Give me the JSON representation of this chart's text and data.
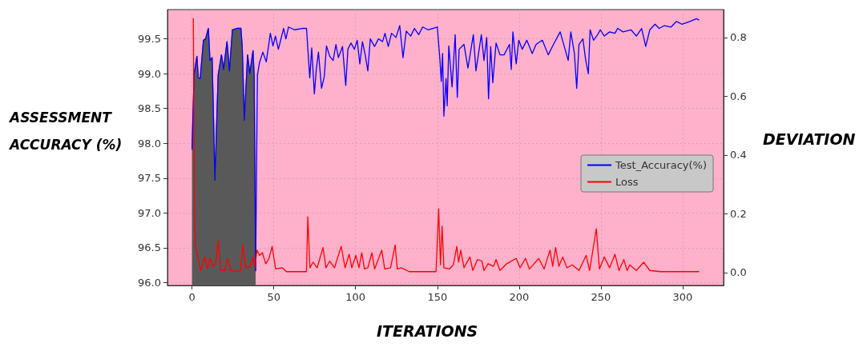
{
  "chart_data": {
    "type": "line",
    "xlabel": "ITERATIONS",
    "ylabel": "ASSESSMENT ACCURACY (%)",
    "y2label": "DEVIATION",
    "xlim": [
      -15,
      325
    ],
    "xticks": [
      0,
      50,
      100,
      150,
      200,
      250,
      300
    ],
    "ylim": [
      95.96,
      99.92
    ],
    "yticks": [
      {
        "value": 96,
        "label": "96.0"
      },
      96.5,
      {
        "value": 97,
        "label": "97.0"
      },
      97.5,
      {
        "value": 98,
        "label": "98.0"
      },
      98.5,
      {
        "value": 99,
        "label": "99.0"
      },
      99.5
    ],
    "y2lim": [
      -0.044,
      0.895
    ],
    "y2ticks": [
      {
        "value": 0,
        "label": "0.0"
      },
      0.2,
      0.4,
      0.6,
      0.8
    ],
    "grid": true,
    "legend": "right",
    "marker": "none",
    "series": [
      {
        "type": "area",
        "color": "#595959",
        "x": [
          0,
          1.3,
          3,
          3.8,
          5,
          7,
          8.3,
          10,
          11,
          12.3,
          14,
          16,
          18,
          19.3,
          21.4,
          22.9,
          24.7,
          27.5,
          29.9,
          30.7,
          32,
          34,
          35.3,
          37.3,
          38,
          38.9
        ],
        "values": [
          97.91,
          99.0,
          99.25,
          98.94,
          98.93,
          99.48,
          99.5,
          99.65,
          99.19,
          99.23,
          97.47,
          98.98,
          99.27,
          99.06,
          99.46,
          99.04,
          99.63,
          99.65,
          99.65,
          99.39,
          98.33,
          99.27,
          99.0,
          99.33,
          98.96,
          96.17
        ]
      },
      {
        "name": "Test_Accuracy(%)",
        "color": "#0000ff",
        "x": [
          0,
          1.3,
          3,
          3.8,
          5,
          7,
          8.3,
          10,
          11,
          12.3,
          14,
          16,
          18,
          19.3,
          21.4,
          22.9,
          24.7,
          27.5,
          29.9,
          30.7,
          32,
          34,
          35.3,
          37.3,
          38,
          38.9,
          40,
          41.3,
          43.3,
          45.4,
          47.9,
          49.5,
          51,
          52.8,
          56,
          57.4,
          59,
          62.6,
          67.5,
          70,
          72,
          73.2,
          74.8,
          76,
          77.3,
          79.2,
          80.9,
          82.2,
          84.2,
          86.3,
          88,
          89.5,
          92,
          94,
          95.3,
          97.2,
          99.3,
          101,
          102.6,
          104.2,
          105.9,
          107.5,
          109,
          111.6,
          114,
          116.5,
          118,
          120,
          122,
          124.7,
          127,
          129,
          131,
          133.7,
          136,
          138.6,
          141,
          144.3,
          150,
          151.6,
          152.4,
          153.2,
          154,
          155.3,
          156,
          157,
          159,
          160.9,
          162.2,
          163.3,
          166.3,
          168.7,
          172,
          173.6,
          176.9,
          178.5,
          180.2,
          181.3,
          182.6,
          183.9,
          185.9,
          188.3,
          190.8,
          194.1,
          195.2,
          196.2,
          198.2,
          199.8,
          201.9,
          204.7,
          208,
          210.4,
          214.2,
          217.8,
          221,
          225.1,
          227.6,
          230,
          231.6,
          233.8,
          235.2,
          236.6,
          239,
          240.6,
          242.3,
          243.4,
          245.5,
          248,
          249.6,
          252.1,
          255.3,
          258.6,
          260.2,
          263.5,
          268.4,
          271.7,
          274.9,
          277.4,
          279.9,
          283.1,
          285.6,
          288.8,
          292.9,
          296.2,
          299.5,
          304.4,
          308.4,
          310.1
        ],
        "values": [
          97.91,
          99.0,
          99.25,
          98.94,
          98.93,
          99.48,
          99.5,
          99.65,
          99.19,
          99.23,
          97.47,
          98.98,
          99.27,
          99.06,
          99.46,
          99.04,
          99.63,
          99.65,
          99.65,
          99.39,
          98.33,
          99.27,
          99.0,
          99.33,
          98.96,
          96.17,
          98.98,
          99.16,
          99.31,
          99.17,
          99.58,
          99.4,
          99.54,
          99.35,
          99.65,
          99.5,
          99.67,
          99.63,
          99.65,
          99.65,
          98.94,
          99.37,
          98.71,
          99.06,
          99.31,
          98.79,
          98.96,
          99.4,
          99.25,
          99.19,
          99.42,
          99.23,
          99.39,
          98.83,
          99.35,
          99.44,
          99.35,
          99.48,
          99.14,
          99.46,
          99.27,
          99.04,
          99.5,
          99.39,
          99.5,
          99.46,
          99.58,
          99.39,
          99.58,
          99.52,
          99.69,
          99.23,
          99.61,
          99.54,
          99.65,
          99.56,
          99.67,
          99.63,
          99.67,
          99.19,
          98.89,
          99.29,
          98.39,
          98.93,
          98.54,
          99.4,
          98.81,
          99.56,
          98.66,
          99.35,
          99.42,
          99.08,
          99.56,
          99.04,
          99.56,
          99.19,
          99.52,
          98.64,
          99.39,
          98.87,
          99.44,
          99.27,
          99.27,
          99.42,
          99.06,
          99.6,
          99.14,
          99.48,
          99.35,
          99.48,
          99.29,
          99.42,
          99.48,
          99.27,
          99.42,
          99.6,
          99.39,
          99.19,
          99.6,
          99.29,
          98.79,
          99.42,
          99.5,
          99.21,
          99.0,
          99.63,
          99.48,
          99.56,
          99.63,
          99.54,
          99.6,
          99.58,
          99.65,
          99.6,
          99.63,
          99.54,
          99.65,
          99.39,
          99.63,
          99.71,
          99.65,
          99.69,
          99.67,
          99.75,
          99.71,
          99.75,
          99.79,
          99.77
        ]
      },
      {
        "name": "Loss",
        "color": "#ff0000",
        "axis": "y2",
        "x": [
          0.8,
          1.6,
          2.1,
          3.8,
          5.4,
          7.8,
          9.5,
          11.1,
          12.7,
          14.4,
          16,
          17.6,
          20.1,
          21.7,
          23.7,
          28.3,
          29.9,
          31,
          32.8,
          35.6,
          37.3,
          38.4,
          39.7,
          41.3,
          43,
          45.1,
          47.1,
          49,
          51.1,
          55.2,
          57.7,
          70,
          70.8,
          72.1,
          74,
          76.5,
          80.1,
          81.9,
          84.2,
          87.1,
          91.2,
          93.6,
          96.1,
          97.7,
          100.2,
          102.1,
          103.8,
          105.4,
          107.5,
          110,
          111.6,
          116,
          117.8,
          121.4,
          124.2,
          125.5,
          127.9,
          132.8,
          149.2,
          150.8,
          151.9,
          152.9,
          154,
          157.3,
          159.8,
          161.9,
          163,
          164.3,
          166.3,
          169.9,
          171.7,
          174.5,
          177.2,
          178.5,
          181,
          184.3,
          185.9,
          188.3,
          192.4,
          198.2,
          200.6,
          203.9,
          206.3,
          212,
          215.3,
          218.9,
          220.5,
          222.3,
          224.3,
          226.7,
          229.2,
          232.5,
          236.6,
          241,
          243.1,
          247.2,
          249.1,
          252.1,
          255.3,
          258.6,
          261.1,
          264,
          266,
          267.6,
          271.7,
          276.1,
          279.9,
          286.4,
          297.8,
          310.1
        ],
        "values": [
          0.866,
          0.158,
          0.094,
          0.044,
          0.007,
          0.053,
          0.012,
          0.048,
          0.021,
          0.03,
          0.108,
          0.007,
          0.007,
          0.048,
          0.007,
          0.003,
          0.007,
          0.094,
          0.016,
          0.021,
          0.053,
          0.016,
          0.076,
          0.058,
          0.067,
          0.03,
          0.048,
          0.089,
          0.012,
          0.016,
          0.003,
          0.003,
          0.19,
          0.016,
          0.035,
          0.016,
          0.085,
          0.016,
          0.039,
          0.016,
          0.089,
          0.016,
          0.062,
          0.016,
          0.058,
          0.016,
          0.067,
          0.012,
          0.016,
          0.067,
          0.012,
          0.076,
          0.012,
          0.016,
          0.094,
          0.012,
          0.016,
          0.003,
          0.003,
          0.217,
          0.026,
          0.158,
          0.016,
          0.012,
          0.026,
          0.089,
          0.035,
          0.076,
          0.016,
          0.053,
          0.007,
          0.044,
          0.039,
          0.007,
          0.03,
          0.021,
          0.044,
          0.007,
          0.03,
          0.048,
          0.016,
          0.048,
          0.012,
          0.048,
          0.012,
          0.076,
          0.021,
          0.085,
          0.021,
          0.053,
          0.016,
          0.026,
          0.007,
          0.058,
          0.007,
          0.149,
          0.012,
          0.053,
          0.016,
          0.062,
          0.007,
          0.044,
          0.007,
          0.026,
          0.007,
          0.035,
          0.007,
          0.003,
          0.003,
          0.003
        ]
      }
    ]
  }
}
